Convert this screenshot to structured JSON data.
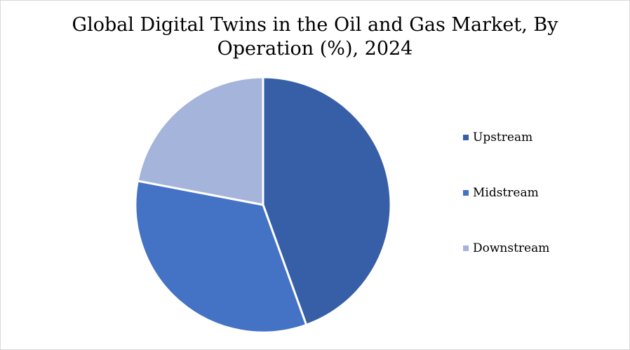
{
  "chart_data": {
    "type": "pie",
    "title_line1": "Global Digital Twins in the Oil and Gas Market, By",
    "title_line2": "Operation (%), 2024",
    "categories": [
      "Upstream",
      "Midstream",
      "Downstream"
    ],
    "values": [
      44.5,
      33.5,
      22.0
    ],
    "colors": [
      "#365fa7",
      "#4472c4",
      "#a5b4da"
    ],
    "legend_position": "right"
  }
}
